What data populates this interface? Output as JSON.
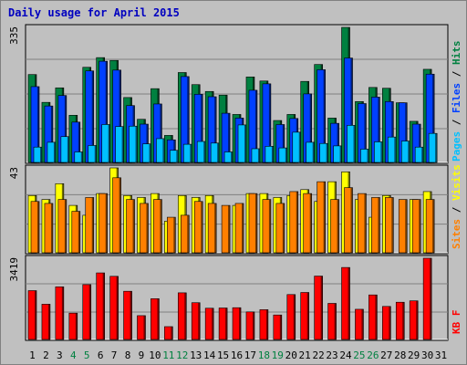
{
  "title": "Daily usage for April 2015",
  "colors": {
    "background": "#c0c0c0",
    "plot_background": "#c0c0c0",
    "visits": "#ffff00",
    "sites": "#ff8000",
    "pages": "#00c0ff",
    "files": "#0040ff",
    "hits": "#008040",
    "kbf": "#ff0000",
    "title": "#0000c0",
    "weekend_tick": "#008040"
  },
  "chart_data": [
    {
      "type": "bar",
      "panel": "hits_files_pages",
      "ylim": [
        0,
        335
      ],
      "scale_label": "335",
      "legend": [
        "Pages",
        "Files",
        "Hits"
      ],
      "legend_colors": [
        "#00c0ff",
        "#0040ff",
        "#008040"
      ],
      "categories": [
        "1",
        "2",
        "3",
        "4",
        "5",
        "6",
        "7",
        "8",
        "9",
        "10",
        "11",
        "12",
        "13",
        "14",
        "15",
        "16",
        "17",
        "18",
        "19",
        "20",
        "21",
        "22",
        "23",
        "24",
        "25",
        "26",
        "27",
        "28",
        "29",
        "30",
        "31"
      ],
      "series": [
        {
          "name": "Hits",
          "values": [
            218,
            149,
            185,
            117,
            236,
            260,
            253,
            161,
            107,
            183,
            67,
            223,
            193,
            176,
            167,
            119,
            212,
            202,
            104,
            119,
            201,
            243,
            110,
            335,
            151,
            186,
            184,
            148,
            102,
            231,
            0
          ]
        },
        {
          "name": "Files",
          "values": [
            188,
            140,
            166,
            100,
            227,
            251,
            229,
            141,
            95,
            145,
            56,
            213,
            169,
            163,
            122,
            110,
            179,
            195,
            94,
            109,
            170,
            230,
            97,
            259,
            146,
            162,
            151,
            148,
            95,
            219,
            0
          ]
        },
        {
          "name": "Pages",
          "values": [
            38,
            50,
            64,
            26,
            42,
            94,
            89,
            90,
            46,
            59,
            30,
            45,
            52,
            48,
            26,
            93,
            34,
            40,
            36,
            75,
            50,
            47,
            41,
            92,
            33,
            51,
            63,
            53,
            38,
            72,
            0
          ]
        }
      ]
    },
    {
      "type": "bar",
      "panel": "visits_sites",
      "ylim": [
        0,
        43
      ],
      "scale_label": "43",
      "legend": [
        "Sites",
        "Visits"
      ],
      "legend_colors": [
        "#ff8000",
        "#ffff00"
      ],
      "categories": [
        "1",
        "2",
        "3",
        "4",
        "5",
        "6",
        "7",
        "8",
        "9",
        "10",
        "11",
        "12",
        "13",
        "14",
        "15",
        "16",
        "17",
        "18",
        "19",
        "20",
        "21",
        "22",
        "23",
        "24",
        "25",
        "26",
        "27",
        "28",
        "29",
        "30",
        "31"
      ],
      "series": [
        {
          "name": "Visits",
          "values": [
            29,
            27,
            35,
            24,
            19,
            30,
            43,
            29,
            28,
            30,
            16,
            29,
            28,
            29,
            0,
            24,
            30,
            30,
            28,
            29,
            32,
            26,
            36,
            41,
            27,
            18,
            29,
            0,
            27,
            31,
            0
          ]
        },
        {
          "name": "Sites",
          "values": [
            26,
            25,
            27,
            21,
            28,
            30,
            38,
            27,
            25,
            27,
            18,
            19,
            26,
            25,
            24,
            25,
            30,
            27,
            25,
            31,
            30,
            36,
            27,
            33,
            30,
            28,
            28,
            27,
            27,
            27,
            0
          ]
        }
      ]
    },
    {
      "type": "bar",
      "panel": "kbf",
      "ylim": [
        0,
        3419
      ],
      "scale_label": "3419",
      "legend": [
        "KB F"
      ],
      "legend_colors": [
        "#ff0000"
      ],
      "categories": [
        "1",
        "2",
        "3",
        "4",
        "5",
        "6",
        "7",
        "8",
        "9",
        "10",
        "11",
        "12",
        "13",
        "14",
        "15",
        "16",
        "17",
        "18",
        "19",
        "20",
        "21",
        "22",
        "23",
        "24",
        "25",
        "26",
        "27",
        "28",
        "29",
        "30",
        "31"
      ],
      "series": [
        {
          "name": "KB F",
          "values": [
            2055,
            1483,
            2215,
            1108,
            2308,
            2802,
            2658,
            2029,
            1002,
            1716,
            539,
            1963,
            1547,
            1315,
            1325,
            1337,
            1159,
            1253,
            1030,
            1890,
            1978,
            2668,
            1518,
            3030,
            1270,
            1875,
            1390,
            1567,
            1625,
            3419,
            0
          ]
        }
      ]
    }
  ],
  "weekend_days": [
    4,
    5,
    11,
    12,
    18,
    19,
    25,
    26
  ]
}
